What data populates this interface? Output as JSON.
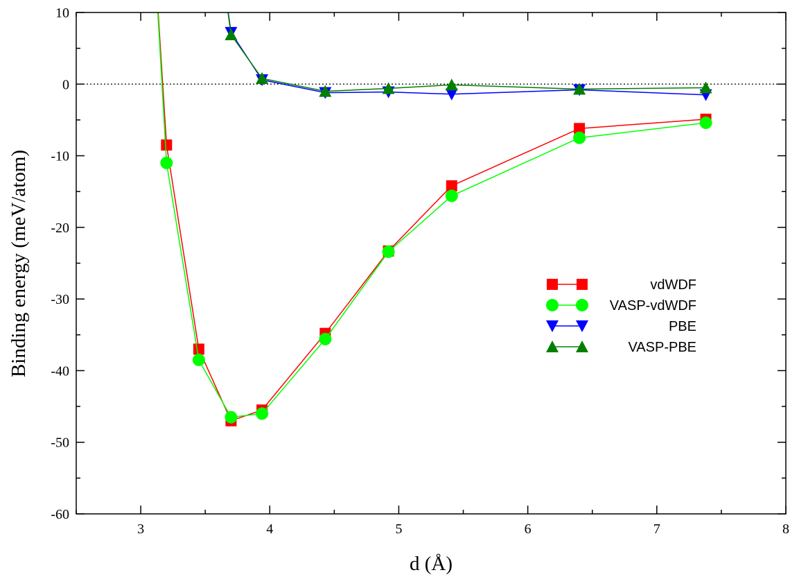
{
  "chart_data": {
    "type": "line",
    "title": "",
    "xlabel": "d (Å)",
    "ylabel": "Binding energy (meV/atom)",
    "xlim": [
      2.5,
      8
    ],
    "ylim": [
      -60,
      10
    ],
    "xticks": [
      3,
      4,
      5,
      6,
      7,
      8
    ],
    "yticks": [
      -60,
      -50,
      -40,
      -30,
      -20,
      -10,
      0,
      10
    ],
    "x_minor_step": 0.5,
    "y_minor_step": 5,
    "grid": false,
    "reference_line": {
      "y": 0,
      "style": "dotted"
    },
    "legend_position": "center-right",
    "series": [
      {
        "name": "vdWDF",
        "color": "#ff0000",
        "marker": "square",
        "points": [
          [
            3.1,
            20
          ],
          [
            3.2,
            -8.5
          ],
          [
            3.45,
            -37
          ],
          [
            3.7,
            -47
          ],
          [
            3.94,
            -45.5
          ],
          [
            4.43,
            -34.8
          ],
          [
            4.92,
            -23.3
          ],
          [
            5.41,
            -14.2
          ],
          [
            6.4,
            -6.2
          ],
          [
            7.38,
            -4.9
          ]
        ]
      },
      {
        "name": "VASP-vdWDF",
        "color": "#00ff00",
        "marker": "circle",
        "points": [
          [
            3.1,
            20
          ],
          [
            3.2,
            -11
          ],
          [
            3.45,
            -38.5
          ],
          [
            3.7,
            -46.5
          ],
          [
            3.94,
            -46
          ],
          [
            4.43,
            -35.6
          ],
          [
            4.92,
            -23.4
          ],
          [
            5.41,
            -15.6
          ],
          [
            6.4,
            -7.5
          ],
          [
            7.38,
            -5.4
          ]
        ]
      },
      {
        "name": "PBE",
        "color": "#0000ff",
        "marker": "triangle-down",
        "points": [
          [
            3.6,
            20
          ],
          [
            3.7,
            7.2
          ],
          [
            3.94,
            0.6
          ],
          [
            4.43,
            -1.2
          ],
          [
            4.92,
            -1.1
          ],
          [
            5.41,
            -1.4
          ],
          [
            6.4,
            -0.8
          ],
          [
            7.38,
            -1.5
          ]
        ]
      },
      {
        "name": "VASP-PBE",
        "color": "#008000",
        "marker": "triangle-up",
        "points": [
          [
            3.6,
            20
          ],
          [
            3.7,
            6.9
          ],
          [
            3.94,
            0.8
          ],
          [
            4.43,
            -1
          ],
          [
            4.92,
            -0.6
          ],
          [
            5.41,
            -0.1
          ],
          [
            6.4,
            -0.7
          ],
          [
            7.38,
            -0.5
          ]
        ]
      }
    ]
  }
}
